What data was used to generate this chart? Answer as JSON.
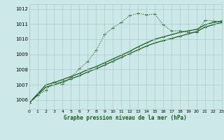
{
  "title": "Graphe pression niveau de la mer (hPa)",
  "bg_color": "#cce8e8",
  "grid_color": "#aacccc",
  "line_color": "#1a5c1a",
  "xlim": [
    0,
    23
  ],
  "ylim": [
    1005.4,
    1012.3
  ],
  "yticks": [
    1006,
    1007,
    1008,
    1009,
    1010,
    1011,
    1012
  ],
  "xticks": [
    0,
    1,
    2,
    3,
    4,
    5,
    6,
    7,
    8,
    9,
    10,
    11,
    12,
    13,
    14,
    15,
    16,
    17,
    18,
    19,
    20,
    21,
    22,
    23
  ],
  "series1_x": [
    0,
    1,
    2,
    3,
    4,
    5,
    6,
    7,
    8,
    9,
    10,
    11,
    12,
    13,
    14,
    15,
    16,
    17,
    18,
    19,
    20,
    21,
    22,
    23
  ],
  "series1_y": [
    1005.8,
    1006.3,
    1006.65,
    1007.2,
    1007.05,
    1007.5,
    1008.05,
    1008.55,
    1009.25,
    1010.3,
    1010.75,
    1011.1,
    1011.55,
    1011.7,
    1011.6,
    1011.65,
    1010.95,
    1010.55,
    1010.55,
    1010.45,
    1010.45,
    1011.25,
    1011.2,
    1011.15
  ],
  "series2_x": [
    0,
    2,
    3,
    4,
    5,
    6,
    7,
    8,
    9,
    10,
    11,
    12,
    13,
    14,
    15,
    16,
    17,
    18,
    19,
    20,
    21,
    22,
    23
  ],
  "series2_y": [
    1005.8,
    1007.0,
    1007.15,
    1007.35,
    1007.55,
    1007.75,
    1008.0,
    1008.2,
    1008.45,
    1008.7,
    1008.95,
    1009.2,
    1009.5,
    1009.75,
    1010.0,
    1010.15,
    1010.3,
    1010.45,
    1010.55,
    1010.65,
    1010.95,
    1011.1,
    1011.2
  ],
  "series3_x": [
    0,
    2,
    3,
    4,
    5,
    6,
    7,
    8,
    9,
    10,
    11,
    12,
    13,
    14,
    15,
    16,
    17,
    18,
    19,
    20,
    21,
    22,
    23
  ],
  "series3_y": [
    1005.8,
    1006.85,
    1007.0,
    1007.2,
    1007.4,
    1007.6,
    1007.85,
    1008.05,
    1008.3,
    1008.55,
    1008.8,
    1009.05,
    1009.3,
    1009.55,
    1009.75,
    1009.9,
    1010.05,
    1010.2,
    1010.35,
    1010.5,
    1010.8,
    1010.95,
    1011.1
  ]
}
